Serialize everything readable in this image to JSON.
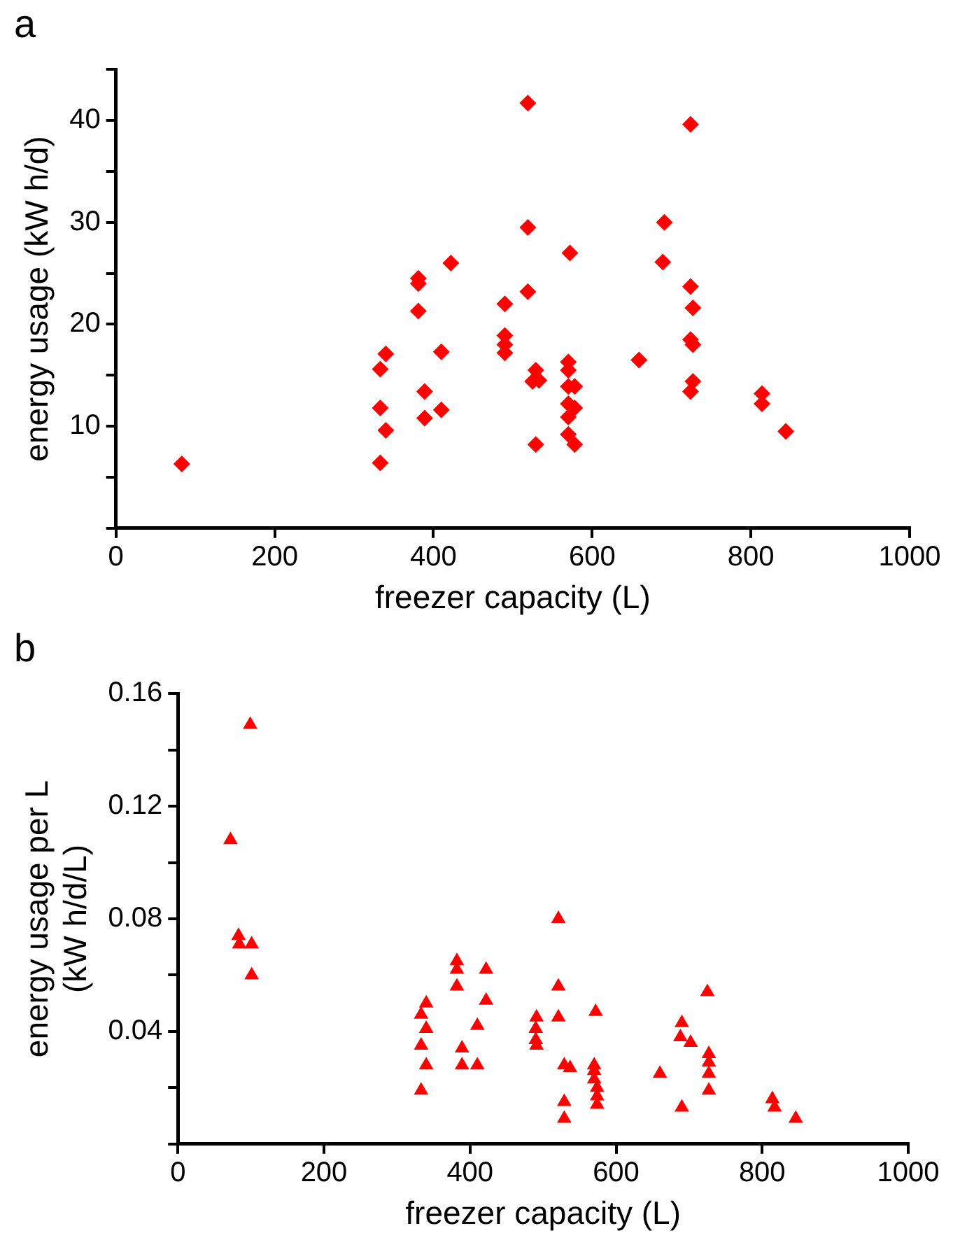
{
  "chart_data": [
    {
      "type": "scatter",
      "title": "a",
      "xlabel": "freezer capacity (L)",
      "ylabel": "energy usage (kW h/d)",
      "marker": "diamond",
      "grid": false,
      "legend": false,
      "xlim": [
        0,
        1000
      ],
      "xticks": [
        0,
        200,
        400,
        600,
        800,
        1000
      ],
      "ylim": [
        0,
        45
      ],
      "yticks": [
        {
          "value": 0,
          "label": null
        },
        {
          "value": 5,
          "label": null
        },
        10,
        {
          "value": 15,
          "label": null
        },
        20,
        {
          "value": 25,
          "label": null
        },
        30,
        {
          "value": 35,
          "label": null
        },
        40,
        {
          "value": 45,
          "label": null
        }
      ],
      "series": [
        {
          "color": "#ff0000",
          "x": [
            83,
            333,
            333,
            333,
            340,
            340,
            381,
            381,
            381,
            389,
            389,
            410,
            410,
            422,
            490,
            490,
            490,
            490,
            519,
            519,
            519,
            529,
            525,
            533,
            529,
            572,
            570,
            570,
            570,
            578,
            570,
            578,
            570,
            570,
            578,
            659,
            691,
            689,
            724,
            724,
            727,
            724,
            727,
            727,
            724,
            814,
            814,
            844
          ],
          "values": [
            6.3,
            15.6,
            11.8,
            6.4,
            17.1,
            9.6,
            24.5,
            24.0,
            21.3,
            13.4,
            10.8,
            17.3,
            11.6,
            26.0,
            22.0,
            18.9,
            18.0,
            17.2,
            41.7,
            29.5,
            23.2,
            15.5,
            14.4,
            14.5,
            8.2,
            27.0,
            16.3,
            15.5,
            13.9,
            13.9,
            12.2,
            11.8,
            10.9,
            9.2,
            8.2,
            16.5,
            30.0,
            26.1,
            39.6,
            23.7,
            21.6,
            18.5,
            18.0,
            14.4,
            13.4,
            13.2,
            12.2,
            9.5
          ]
        }
      ]
    },
    {
      "type": "scatter",
      "title": "b",
      "xlabel": "freezer capacity (L)",
      "ylabel": "energy usage per L\n(kW h/d/L)",
      "marker": "triangle",
      "grid": false,
      "legend": false,
      "xlim": [
        0,
        1000
      ],
      "xticks": [
        0,
        200,
        400,
        600,
        800,
        1000
      ],
      "ylim": [
        0,
        0.16
      ],
      "yticks": [
        {
          "value": 0,
          "label": null
        },
        {
          "value": 0.02,
          "label": null
        },
        0.04,
        {
          "value": 0.06,
          "label": null
        },
        0.08,
        {
          "value": 0.1,
          "label": null
        },
        0.12,
        {
          "value": 0.14,
          "label": null
        },
        0.16
      ],
      "series": [
        {
          "color": "#ff0000",
          "x": [
            99,
            72,
            83,
            84,
            101,
            101,
            333,
            340,
            340,
            333,
            340,
            333,
            382,
            382,
            382,
            389,
            389,
            410,
            410,
            422,
            422,
            491,
            490,
            490,
            491,
            521,
            521,
            521,
            529,
            537,
            529,
            529,
            572,
            570,
            570,
            570,
            574,
            574,
            574,
            660,
            690,
            688,
            702,
            690,
            725,
            727,
            727,
            727,
            727,
            814,
            817,
            846
          ],
          "values": [
            0.149,
            0.108,
            0.074,
            0.071,
            0.071,
            0.06,
            0.046,
            0.05,
            0.041,
            0.035,
            0.028,
            0.019,
            0.065,
            0.062,
            0.056,
            0.034,
            0.028,
            0.042,
            0.028,
            0.062,
            0.051,
            0.045,
            0.041,
            0.037,
            0.035,
            0.08,
            0.056,
            0.045,
            0.028,
            0.027,
            0.015,
            0.009,
            0.047,
            0.028,
            0.026,
            0.023,
            0.02,
            0.017,
            0.014,
            0.025,
            0.043,
            0.038,
            0.036,
            0.013,
            0.054,
            0.032,
            0.029,
            0.025,
            0.019,
            0.016,
            0.013,
            0.009
          ]
        }
      ]
    }
  ]
}
